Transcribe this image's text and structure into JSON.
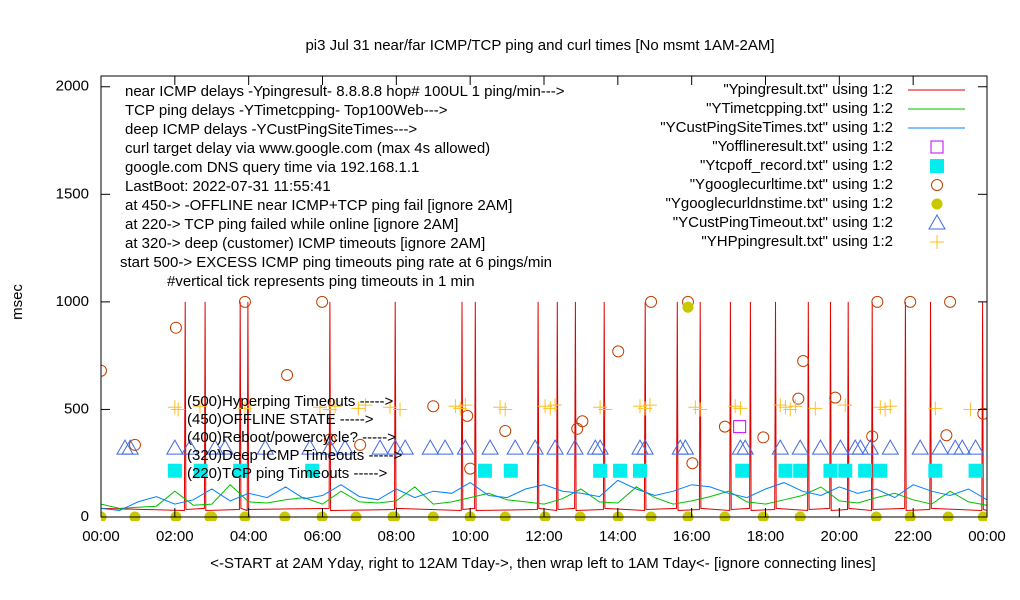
{
  "chart_data": {
    "type": "line",
    "title": "pi3 Jul 31  near/far ICMP/TCP ping and curl times [No msmt 1AM-2AM]",
    "ylabel": "msec",
    "xlabel": "<-START at 2AM Yday, right to 12AM Tday->, then wrap left to 1AM Tday<- [ignore connecting lines]",
    "xlim": [
      0,
      24
    ],
    "ylim": [
      0,
      2050
    ],
    "xticks": [
      {
        "value": 0,
        "label": "00:00"
      },
      {
        "value": 2,
        "label": "02:00"
      },
      {
        "value": 4,
        "label": "04:00"
      },
      {
        "value": 6,
        "label": "06:00"
      },
      {
        "value": 8,
        "label": "08:00"
      },
      {
        "value": 10,
        "label": "10:00"
      },
      {
        "value": 12,
        "label": "12:00"
      },
      {
        "value": 14,
        "label": "14:00"
      },
      {
        "value": 16,
        "label": "16:00"
      },
      {
        "value": 18,
        "label": "18:00"
      },
      {
        "value": 20,
        "label": "20:00"
      },
      {
        "value": 22,
        "label": "22:00"
      },
      {
        "value": 24,
        "label": "00:00"
      }
    ],
    "yticks": [
      0,
      500,
      1000,
      1500,
      2000
    ],
    "grid": false,
    "notes": [
      "near ICMP delays -Ypingresult- 8.8.8.8 hop# 100UL 1 ping/min--->",
      "TCP ping delays -YTimetcpping- Top100Web--->",
      "deep ICMP delays -YCustPingSiteTimes--->",
      "curl target delay via www.google.com (max 4s allowed)",
      "google.com DNS query time via 192.168.1.1",
      "LastBoot: 2022-07-31 11:55:41",
      "at 450-> -OFFLINE near ICMP+TCP ping fail [ignore 2AM]",
      "at 220-> TCP ping failed while online [ignore 2AM]",
      "at 320-> deep (customer) ICMP timeouts [ignore 2AM]",
      "start 500-> EXCESS ICMP ping timeouts ping rate at 6 pings/min",
      "#vertical tick represents ping timeouts in 1 min"
    ],
    "inner_labels": [
      "(500)Hyperping Timeouts ----->",
      "(450)OFFLINE STATE ----->",
      "(400)Reboot/powercycle? ----->",
      "(320)Deep ICMP Timeouts ----->",
      "(220)TCP ping Timeouts ----->"
    ],
    "series": [
      {
        "name": "\"Ypingresult.txt\" using 1:2",
        "color": "#e00000",
        "marker": "line",
        "x": [
          0,
          2.26,
          2.28,
          2.3,
          2.8,
          2.82,
          2.84,
          3.75,
          3.77,
          3.79,
          3.96,
          3.98,
          4.0,
          6.18,
          6.2,
          6.22,
          7.95,
          7.97,
          7.99,
          9.76,
          9.78,
          9.8,
          10.12,
          10.14,
          10.16,
          11.82,
          11.84,
          11.86,
          12.34,
          12.36,
          12.38,
          12.83,
          12.85,
          12.87,
          13.61,
          13.63,
          13.65,
          14.72,
          14.74,
          14.76,
          15.59,
          15.61,
          15.63,
          16.21,
          16.23,
          16.25,
          17.03,
          17.05,
          17.07,
          17.57,
          17.59,
          17.61,
          18.25,
          18.27,
          18.29,
          19.14,
          19.16,
          19.18,
          19.74,
          19.76,
          19.78,
          20.22,
          20.24,
          20.26,
          20.87,
          20.89,
          20.91,
          21.77,
          21.79,
          21.81,
          22.45,
          22.47,
          22.49,
          23.86,
          23.88,
          23.9,
          24
        ],
        "values": [
          40,
          30,
          1000,
          35,
          40,
          1000,
          30,
          35,
          1000,
          40,
          30,
          1000,
          35,
          40,
          1000,
          30,
          35,
          1000,
          40,
          30,
          1000,
          35,
          40,
          1000,
          30,
          35,
          1000,
          40,
          30,
          1000,
          35,
          40,
          1000,
          30,
          35,
          1000,
          40,
          30,
          1000,
          35,
          40,
          1000,
          30,
          35,
          1000,
          40,
          30,
          1000,
          35,
          40,
          1000,
          30,
          35,
          1000,
          40,
          30,
          1000,
          35,
          40,
          1000,
          30,
          35,
          1000,
          40,
          30,
          1000,
          35,
          40,
          1000,
          30,
          35,
          1000,
          40,
          30,
          1000,
          35,
          30
        ]
      },
      {
        "name": "\"YTimetcpping.txt\" using 1:2",
        "color": "#00c000",
        "marker": "line",
        "x": [
          0,
          0.5,
          1,
          1.5,
          2,
          2.5,
          3,
          3.5,
          4,
          4.5,
          5,
          5.5,
          6,
          6.5,
          7,
          7.5,
          8,
          8.5,
          9,
          9.5,
          10,
          10.5,
          11,
          11.5,
          12,
          12.5,
          13,
          13.5,
          14,
          14.5,
          15,
          15.5,
          16,
          16.5,
          17,
          17.5,
          18,
          18.5,
          19,
          19.5,
          20,
          20.5,
          21,
          21.5,
          22,
          22.5,
          23,
          23.5,
          24
        ],
        "values": [
          60,
          40,
          45,
          50,
          120,
          55,
          60,
          150,
          70,
          65,
          80,
          90,
          60,
          120,
          70,
          65,
          75,
          140,
          60,
          70,
          90,
          110,
          80,
          70,
          60,
          85,
          130,
          70,
          65,
          140,
          90,
          60,
          75,
          95,
          120,
          70,
          60,
          80,
          100,
          140,
          75,
          65,
          90,
          110,
          80,
          60,
          120,
          70,
          55
        ]
      },
      {
        "name": "\"YCustPingSiteTimes.txt\" using 1:2",
        "color": "#0080ff",
        "marker": "line",
        "x": [
          0,
          0.5,
          1,
          1.5,
          2,
          2.5,
          3,
          3.5,
          4,
          4.5,
          5,
          5.5,
          6,
          6.5,
          7,
          7.5,
          8,
          8.5,
          9,
          9.5,
          10,
          10.5,
          11,
          11.5,
          12,
          12.5,
          13,
          13.5,
          14,
          14.5,
          15,
          15.5,
          16,
          16.5,
          17,
          17.5,
          18,
          18.5,
          19,
          19.5,
          20,
          20.5,
          21,
          21.5,
          22,
          22.5,
          23,
          23.5,
          24
        ],
        "values": [
          40,
          30,
          70,
          95,
          60,
          80,
          130,
          75,
          110,
          90,
          140,
          85,
          100,
          150,
          95,
          80,
          130,
          90,
          120,
          110,
          160,
          100,
          90,
          130,
          150,
          120,
          110,
          95,
          170,
          130,
          100,
          120,
          150,
          140,
          110,
          90,
          130,
          160,
          120,
          100,
          140,
          110,
          130,
          90,
          150,
          120,
          100,
          130,
          80
        ]
      },
      {
        "name": "\"Yofflineresult.txt\" using 1:2",
        "color": "#c000ff",
        "marker": "square",
        "x": [
          17.3
        ],
        "values": [
          420
        ]
      },
      {
        "name": "\"Ytcpoff_record.txt\" using 1:2",
        "color": "#00eeee",
        "marker": "filled-square",
        "x": [
          2.0,
          2.7,
          3.77,
          5.72,
          10.4,
          11.1,
          13.52,
          14.06,
          14.6,
          17.37,
          18.54,
          18.94,
          19.76,
          20.16,
          20.7,
          21.11,
          22.6,
          23.69
        ],
        "values": [
          215,
          215,
          215,
          215,
          215,
          215,
          215,
          215,
          215,
          215,
          215,
          215,
          215,
          215,
          215,
          215,
          215,
          215
        ]
      },
      {
        "name": "\"Ygooglecurltime.txt\" using 1:2",
        "color": "#c04000",
        "marker": "circle",
        "x": [
          0,
          0.92,
          2.03,
          3.9,
          5.04,
          5.99,
          6.2,
          7.02,
          9.0,
          9.92,
          10.0,
          10.95,
          13.04,
          12.9,
          14.01,
          14.9,
          15.9,
          16.02,
          16.9,
          17.94,
          18.89,
          19.02,
          19.89,
          20.89,
          21.03,
          21.92,
          22.9,
          23.0,
          23.9
        ],
        "values": [
          680,
          335,
          880,
          1000,
          660,
          1000,
          360,
          335,
          515,
          470,
          225,
          400,
          445,
          410,
          770,
          1000,
          1000,
          250,
          420,
          370,
          550,
          725,
          555,
          375,
          1000,
          1000,
          380,
          1000,
          480
        ]
      },
      {
        "name": "\"Ygooglecurldnstime.txt\" using 1:2",
        "color": "#c8c800",
        "marker": "dot",
        "x": [
          0,
          0.92,
          2.03,
          2.95,
          3.0,
          3.9,
          4.98,
          5.99,
          6.91,
          7.91,
          7.96,
          9.0,
          10.0,
          10.95,
          12.03,
          12.98,
          14.01,
          14.9,
          15.9,
          15.9,
          16.9,
          17.94,
          18.94,
          21.0,
          21.92,
          22.95,
          23.9
        ],
        "values": [
          0,
          0,
          0,
          0,
          0,
          0,
          0,
          0,
          0,
          0,
          0,
          0,
          0,
          0,
          0,
          0,
          0,
          0,
          0,
          975,
          0,
          0,
          0,
          0,
          0,
          0,
          0
        ]
      },
      {
        "name": "\"YCustPingTimeout.txt\" using 1:2",
        "color": "#4169e1",
        "marker": "triangle",
        "x": [
          0.65,
          0.79,
          2.0,
          2.41,
          3.09,
          3.36,
          4.45,
          5.66,
          6.2,
          6.61,
          7.56,
          7.97,
          8.24,
          8.92,
          9.32,
          9.87,
          10.54,
          11.22,
          11.76,
          12.3,
          12.84,
          13.39,
          13.52,
          14.6,
          14.74,
          15.69,
          15.83,
          17.32,
          17.45,
          18.4,
          18.94,
          19.49,
          20.03,
          20.43,
          20.57,
          20.84,
          21.38,
          22.19,
          22.73,
          23.14,
          23.33,
          23.69
        ],
        "values": [
          320,
          320,
          320,
          320,
          320,
          320,
          320,
          320,
          320,
          320,
          320,
          320,
          320,
          320,
          320,
          320,
          320,
          320,
          320,
          320,
          320,
          320,
          320,
          320,
          320,
          320,
          320,
          320,
          320,
          320,
          320,
          320,
          320,
          320,
          320,
          320,
          320,
          320,
          320,
          320,
          320,
          320
        ]
      },
      {
        "name": "\"YHPpingresult.txt\" using 1:2",
        "color": "#ffc020",
        "marker": "plus",
        "x": [
          2.0,
          2.09,
          2.68,
          3.9,
          4.04,
          5.93,
          6.2,
          6.34,
          6.97,
          7.16,
          7.83,
          8.1,
          9.6,
          9.73,
          9.87,
          10.81,
          10.95,
          12.03,
          12.17,
          12.3,
          13.52,
          13.66,
          14.6,
          14.74,
          14.87,
          16.1,
          16.23,
          17.18,
          17.32,
          18.4,
          18.54,
          18.67,
          18.81,
          19.35,
          20.16,
          21.11,
          21.24,
          21.38,
          22.6,
          23.55
        ],
        "values": [
          510,
          500,
          515,
          505,
          520,
          510,
          500,
          515,
          505,
          520,
          510,
          500,
          515,
          505,
          520,
          510,
          500,
          515,
          505,
          520,
          510,
          500,
          515,
          505,
          520,
          510,
          500,
          515,
          505,
          520,
          510,
          500,
          515,
          505,
          520,
          510,
          500,
          515,
          505,
          500
        ]
      }
    ]
  }
}
